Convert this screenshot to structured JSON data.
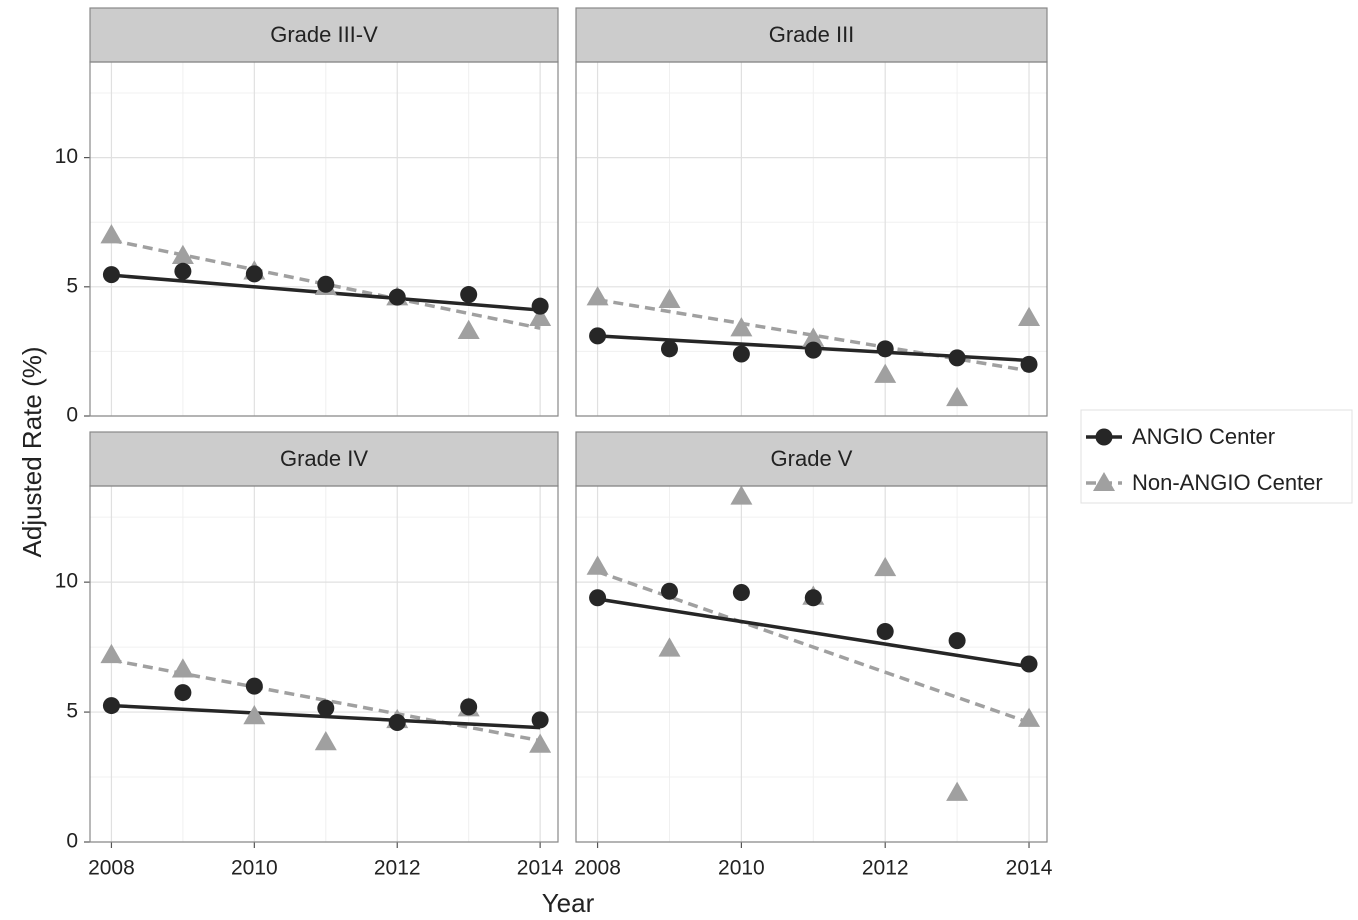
{
  "chart_data": {
    "type": "line",
    "xlabel": "Year",
    "ylabel": "Adjusted Rate (%)",
    "x": [
      2008,
      2009,
      2010,
      2011,
      2012,
      2013,
      2014
    ],
    "xlim": [
      2007.7,
      2014.25
    ],
    "xticks": [
      2008,
      2010,
      2012,
      2014
    ],
    "xminorticks": [
      2009,
      2011,
      2013
    ],
    "ylim": [
      0,
      13.7
    ],
    "yticks": [
      0,
      5,
      10
    ],
    "yminorticks": [
      2.5,
      7.5,
      12.5
    ],
    "grid": true,
    "legend": "right",
    "series": [
      {
        "name": "ANGIO Center",
        "color": "#262626",
        "marker": "circle",
        "dash": "solid"
      },
      {
        "name": "Non-ANGIO Center",
        "color": "#a0a0a0",
        "marker": "triangle",
        "dash": "dashed"
      }
    ],
    "panels": [
      {
        "title": "Grade III-V",
        "series": [
          {
            "values": [
              5.47,
              5.6,
              5.5,
              5.1,
              4.6,
              4.7,
              4.25
            ],
            "fit": [
              5.45,
              4.1
            ]
          },
          {
            "values": [
              7.0,
              6.2,
              5.6,
              5.0,
              4.6,
              3.3,
              3.8
            ],
            "fit": [
              6.8,
              3.4
            ]
          }
        ]
      },
      {
        "title": "Grade III",
        "series": [
          {
            "values": [
              3.1,
              2.6,
              2.4,
              2.55,
              2.6,
              2.25,
              2.0
            ],
            "fit": [
              3.1,
              2.15
            ]
          },
          {
            "values": [
              4.6,
              4.5,
              3.4,
              3.0,
              1.6,
              0.7,
              3.8
            ],
            "fit": [
              4.5,
              1.75
            ]
          }
        ]
      },
      {
        "title": "Grade IV",
        "series": [
          {
            "values": [
              5.25,
              5.75,
              6.0,
              5.15,
              4.6,
              5.2,
              4.7
            ],
            "fit": [
              5.25,
              4.4
            ]
          },
          {
            "values": [
              7.2,
              6.65,
              4.85,
              3.85,
              4.7,
              5.15,
              3.75
            ],
            "fit": [
              7.0,
              3.9
            ]
          }
        ]
      },
      {
        "title": "Grade V",
        "series": [
          {
            "values": [
              9.4,
              9.65,
              9.6,
              9.4,
              8.1,
              7.75,
              6.85
            ],
            "fit": [
              9.35,
              6.75
            ]
          },
          {
            "values": [
              10.6,
              7.45,
              13.3,
              9.45,
              10.55,
              1.9,
              4.75
            ],
            "fit": [
              10.4,
              4.6
            ]
          }
        ]
      }
    ]
  }
}
